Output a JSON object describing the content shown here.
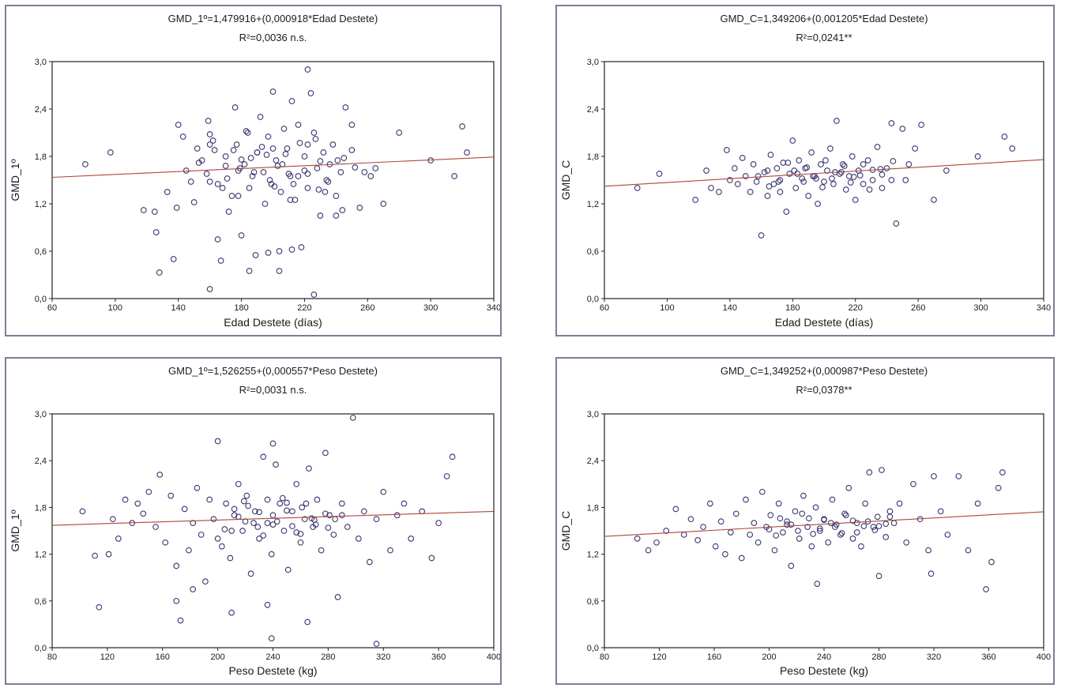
{
  "chart_data": [
    {
      "type": "scatter",
      "title": "GMD_1º=1,479916+(0,000918*Edad Destete)",
      "subtitle": "R²=0,0036 n.s.",
      "xlabel": "Edad Destete (días)",
      "ylabel": "GMD_1º",
      "xlim": [
        60,
        340
      ],
      "ylim": [
        0.0,
        3.0
      ],
      "xticks": [
        "60",
        "100",
        "140",
        "180",
        "220",
        "260",
        "300",
        "340"
      ],
      "yticks": [
        "0,0",
        "0,6",
        "1,2",
        "1,8",
        "2,4",
        "3,0"
      ],
      "fit": {
        "intercept": 1.479916,
        "slope": 0.000918
      },
      "grid": false,
      "x": [
        81,
        97,
        118,
        126,
        128,
        133,
        137,
        139,
        140,
        143,
        145,
        148,
        150,
        152,
        155,
        158,
        159,
        160,
        162,
        165,
        167,
        170,
        172,
        174,
        176,
        177,
        179,
        180,
        182,
        184,
        185,
        187,
        189,
        190,
        192,
        194,
        195,
        197,
        199,
        200,
        202,
        204,
        205,
        207,
        209,
        211,
        212,
        214,
        216,
        218,
        220,
        222,
        224,
        226,
        228,
        230,
        232,
        234,
        236,
        238,
        240,
        243,
        246,
        250,
        255,
        258,
        262,
        265,
        270,
        280,
        300,
        315,
        320,
        323,
        153,
        160,
        168,
        175,
        178,
        186,
        193,
        198,
        203,
        208,
        213,
        217,
        222,
        227,
        233,
        241,
        252,
        160,
        163,
        171,
        178,
        183,
        188,
        196,
        201,
        206,
        211,
        216,
        222,
        229,
        235,
        244,
        125,
        160,
        170,
        180,
        190,
        200,
        210,
        220,
        230,
        240,
        250
      ],
      "y": [
        1.7,
        1.85,
        1.12,
        0.84,
        0.33,
        1.35,
        0.5,
        1.15,
        2.2,
        2.05,
        1.62,
        1.48,
        1.22,
        1.9,
        1.75,
        1.58,
        2.25,
        0.12,
        2.0,
        1.45,
        0.48,
        1.8,
        1.1,
        1.3,
        2.42,
        1.95,
        1.65,
        0.8,
        1.7,
        2.1,
        1.4,
        1.55,
        0.55,
        1.85,
        2.3,
        1.6,
        1.2,
        2.05,
        1.45,
        2.62,
        1.75,
        0.6,
        1.35,
        2.15,
        1.9,
        1.55,
        2.5,
        1.25,
        2.2,
        0.65,
        1.8,
        1.4,
        2.6,
        2.1,
        1.65,
        1.05,
        1.85,
        1.5,
        1.7,
        1.95,
        1.3,
        1.6,
        2.42,
        2.2,
        1.15,
        1.6,
        1.55,
        1.65,
        1.2,
        2.1,
        1.75,
        1.55,
        2.18,
        1.85,
        1.72,
        1.95,
        1.4,
        1.88,
        1.62,
        1.78,
        1.92,
        1.5,
        1.68,
        1.83,
        1.45,
        1.97,
        1.58,
        2.02,
        1.35,
        1.75,
        1.66,
        2.08,
        1.88,
        1.52,
        1.3,
        2.12,
        1.6,
        1.82,
        1.42,
        1.7,
        1.25,
        1.55,
        1.95,
        1.38,
        1.48,
        1.12,
        1.1,
        1.48,
        1.68,
        1.76,
        1.85,
        1.9,
        1.58,
        1.62,
        1.74,
        1.05,
        1.88
      ],
      "x2": [
        165,
        185,
        197,
        204,
        212,
        222,
        226,
        245
      ],
      "y2": [
        0.75,
        0.35,
        0.58,
        0.35,
        0.62,
        2.9,
        0.05,
        1.78
      ]
    },
    {
      "type": "scatter",
      "title": "GMD_C=1,349206+(0,001205*Edad Destete)",
      "subtitle": "R²=0,0241**",
      "xlabel": "Edad Destete (días)",
      "ylabel": "GMD_C",
      "xlim": [
        60,
        340
      ],
      "ylim": [
        0.0,
        3.0
      ],
      "xticks": [
        "60",
        "100",
        "140",
        "180",
        "220",
        "260",
        "300",
        "340"
      ],
      "yticks": [
        "0,0",
        "0,6",
        "1,2",
        "1,8",
        "2,4",
        "3,0"
      ],
      "fit": {
        "intercept": 1.349206,
        "slope": 0.001205
      },
      "grid": false,
      "x": [
        81,
        95,
        118,
        125,
        128,
        133,
        138,
        140,
        143,
        145,
        148,
        150,
        153,
        155,
        157,
        160,
        162,
        164,
        166,
        168,
        170,
        172,
        174,
        176,
        178,
        180,
        182,
        184,
        186,
        188,
        190,
        192,
        194,
        196,
        198,
        200,
        202,
        204,
        206,
        208,
        210,
        212,
        214,
        216,
        218,
        220,
        222,
        225,
        228,
        231,
        234,
        237,
        240,
        243,
        246,
        250,
        254,
        258,
        262,
        270,
        278,
        298,
        315,
        320,
        158,
        164,
        171,
        177,
        183,
        189,
        195,
        201,
        207,
        213,
        219,
        225,
        231,
        237,
        244,
        252,
        165,
        172,
        181,
        187,
        193,
        199,
        205,
        211,
        217,
        223,
        229,
        236,
        243
      ],
      "y": [
        1.4,
        1.58,
        1.25,
        1.62,
        1.4,
        1.35,
        1.88,
        1.5,
        1.65,
        1.45,
        1.78,
        1.55,
        1.35,
        1.7,
        1.48,
        0.8,
        1.6,
        1.3,
        1.82,
        1.45,
        1.65,
        1.5,
        1.72,
        1.1,
        1.58,
        2.0,
        1.4,
        1.75,
        1.52,
        1.65,
        1.3,
        1.85,
        1.55,
        1.2,
        1.7,
        1.48,
        1.62,
        1.9,
        1.45,
        2.25,
        1.58,
        1.7,
        1.38,
        1.55,
        1.8,
        1.25,
        1.62,
        1.45,
        1.75,
        1.5,
        1.92,
        1.4,
        1.65,
        2.22,
        0.95,
        2.15,
        1.7,
        1.9,
        2.2,
        1.25,
        1.62,
        1.8,
        2.05,
        1.9,
        1.55,
        1.62,
        1.48,
        1.72,
        1.58,
        1.66,
        1.52,
        1.75,
        1.6,
        1.68,
        1.54,
        1.7,
        1.63,
        1.57,
        1.74,
        1.5,
        1.42,
        1.35,
        1.62,
        1.48,
        1.55,
        1.41,
        1.52,
        1.6,
        1.47,
        1.56,
        1.38,
        1.64,
        1.5
      ],
      "x2": [],
      "y2": []
    },
    {
      "type": "scatter",
      "title": "GMD_1º=1,526255+(0,000557*Peso Destete)",
      "subtitle": "R²=0,0031 n.s.",
      "xlabel": "Peso Destete (kg)",
      "ylabel": "GMD_1º",
      "xlim": [
        80,
        400
      ],
      "ylim": [
        0.0,
        3.0
      ],
      "xticks": [
        "80",
        "120",
        "160",
        "200",
        "240",
        "280",
        "320",
        "360",
        "400"
      ],
      "yticks": [
        "0,0",
        "0,6",
        "1,2",
        "1,8",
        "2,4",
        "3,0"
      ],
      "fit": {
        "intercept": 1.526255,
        "slope": 0.000557
      },
      "grid": false,
      "x": [
        102,
        111,
        114,
        121,
        124,
        128,
        133,
        138,
        142,
        146,
        150,
        155,
        158,
        162,
        166,
        170,
        173,
        176,
        179,
        182,
        185,
        188,
        191,
        194,
        197,
        200,
        203,
        206,
        209,
        212,
        215,
        218,
        221,
        224,
        227,
        230,
        233,
        236,
        239,
        242,
        245,
        248,
        251,
        254,
        257,
        260,
        263,
        266,
        269,
        272,
        275,
        278,
        281,
        284,
        287,
        290,
        294,
        298,
        302,
        306,
        310,
        315,
        320,
        325,
        330,
        335,
        340,
        348,
        355,
        360,
        366,
        370,
        215,
        222,
        229,
        236,
        243,
        250,
        257,
        264,
        271,
        278,
        285,
        205,
        212,
        219,
        226,
        233,
        240,
        247,
        254,
        261,
        268,
        200,
        210,
        220,
        230,
        240,
        250,
        260,
        270,
        280,
        290
      ],
      "y": [
        1.75,
        1.18,
        0.52,
        1.2,
        1.65,
        1.4,
        1.9,
        1.6,
        1.85,
        1.72,
        2.0,
        1.55,
        2.22,
        1.35,
        1.95,
        1.05,
        0.35,
        1.78,
        1.25,
        1.6,
        2.05,
        1.45,
        0.85,
        1.9,
        1.65,
        2.65,
        1.3,
        1.85,
        1.15,
        1.7,
        2.1,
        1.5,
        1.95,
        0.95,
        1.75,
        1.4,
        2.45,
        1.6,
        1.2,
        2.35,
        1.85,
        1.5,
        1.0,
        1.75,
        2.1,
        1.35,
        1.65,
        2.3,
        1.55,
        1.9,
        1.25,
        2.5,
        1.7,
        1.45,
        0.65,
        1.85,
        1.55,
        2.95,
        1.4,
        1.75,
        1.1,
        1.65,
        2.0,
        1.25,
        1.7,
        1.85,
        1.4,
        1.75,
        1.15,
        1.6,
        2.2,
        2.45,
        1.68,
        1.82,
        1.55,
        1.9,
        1.62,
        1.76,
        1.48,
        1.85,
        1.58,
        1.72,
        1.65,
        1.52,
        1.78,
        1.88,
        1.6,
        1.44,
        1.7,
        1.92,
        1.56,
        1.8,
        1.66,
        1.4,
        1.5,
        1.62,
        1.74,
        1.58,
        1.86,
        1.46,
        1.64,
        1.54,
        1.7
      ],
      "x2": [
        170,
        182,
        210,
        236,
        239,
        240,
        265,
        315
      ],
      "y2": [
        0.6,
        0.75,
        0.45,
        0.55,
        0.12,
        2.62,
        0.33,
        0.05
      ]
    },
    {
      "type": "scatter",
      "title": "GMD_C=1,349252+(0,000987*Peso Destete)",
      "subtitle": "R²=0,0378**",
      "xlabel": "Peso Destete (kg)",
      "ylabel": "GMD_C",
      "xlim": [
        80,
        400
      ],
      "ylim": [
        0.0,
        3.0
      ],
      "xticks": [
        "80",
        "120",
        "160",
        "200",
        "240",
        "280",
        "320",
        "360",
        "400"
      ],
      "yticks": [
        "0,0",
        "0,6",
        "1,2",
        "1,8",
        "2,4",
        "3,0"
      ],
      "fit": {
        "intercept": 1.349252,
        "slope": 0.000987
      },
      "grid": false,
      "x": [
        104,
        112,
        118,
        125,
        132,
        138,
        143,
        148,
        152,
        157,
        161,
        165,
        168,
        172,
        176,
        180,
        183,
        186,
        189,
        192,
        195,
        198,
        201,
        204,
        207,
        210,
        213,
        216,
        219,
        222,
        225,
        228,
        231,
        234,
        237,
        240,
        243,
        246,
        249,
        252,
        255,
        258,
        261,
        264,
        267,
        270,
        273,
        276,
        279,
        282,
        285,
        288,
        291,
        295,
        300,
        305,
        310,
        316,
        320,
        325,
        330,
        338,
        345,
        352,
        358,
        362,
        367,
        370,
        200,
        208,
        216,
        224,
        232,
        240,
        248,
        256,
        264,
        272,
        280,
        288,
        205,
        213,
        221,
        229,
        237,
        245,
        253,
        261,
        269,
        277,
        285
      ],
      "y": [
        1.4,
        1.25,
        1.35,
        1.5,
        1.78,
        1.45,
        1.65,
        1.38,
        1.55,
        1.85,
        1.3,
        1.62,
        1.2,
        1.48,
        1.72,
        1.15,
        1.9,
        1.45,
        1.6,
        1.35,
        2.0,
        1.55,
        1.7,
        1.25,
        1.85,
        1.48,
        1.62,
        1.05,
        1.75,
        1.4,
        1.95,
        1.55,
        1.3,
        1.8,
        1.5,
        1.65,
        1.35,
        1.9,
        1.58,
        1.45,
        1.72,
        2.05,
        1.4,
        1.6,
        1.3,
        1.85,
        2.25,
        1.55,
        1.68,
        2.28,
        1.42,
        1.75,
        1.6,
        1.85,
        1.35,
        2.1,
        1.65,
        1.25,
        2.2,
        1.75,
        1.45,
        2.2,
        1.25,
        1.85,
        0.75,
        1.1,
        2.05,
        2.25,
        1.52,
        1.66,
        1.58,
        1.72,
        1.46,
        1.64,
        1.55,
        1.7,
        1.48,
        1.62,
        1.56,
        1.68,
        1.44,
        1.58,
        1.5,
        1.66,
        1.53,
        1.6,
        1.47,
        1.63,
        1.56,
        1.51,
        1.59
      ],
      "x2": [
        235,
        280,
        318
      ],
      "y2": [
        0.82,
        0.92,
        0.95
      ]
    }
  ]
}
